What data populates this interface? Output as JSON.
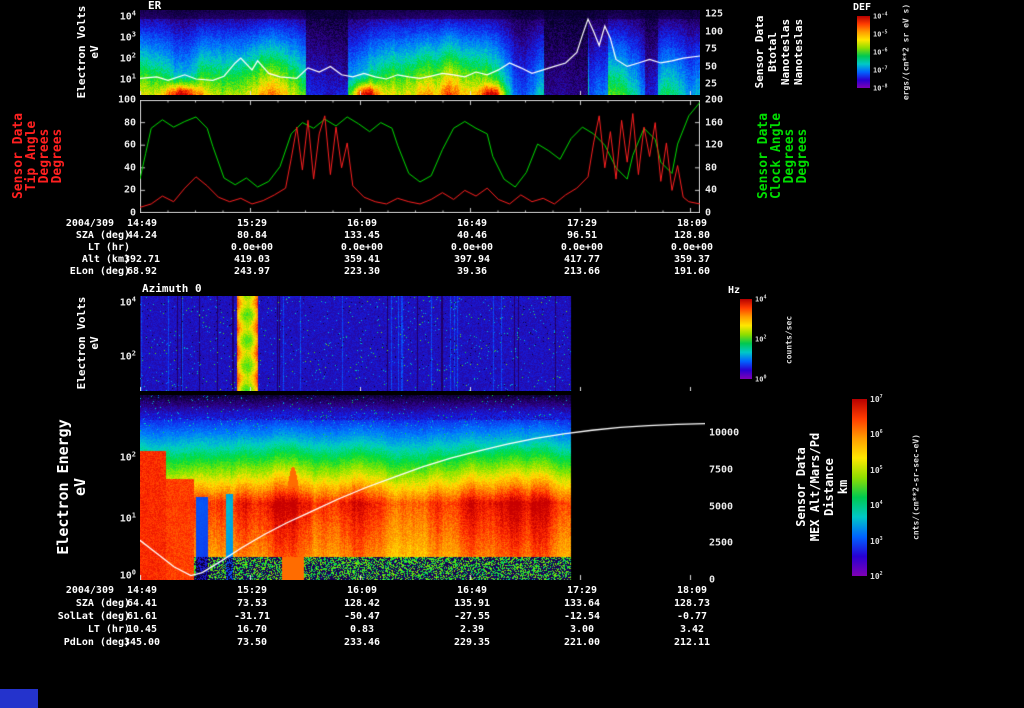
{
  "window": {
    "background": "#000000",
    "corner_box_color": "#2433cc"
  },
  "chart_data": [
    {
      "id": "er-spectrogram",
      "type": "heatmap",
      "title": "ER",
      "x_time_ticks": [
        "14:49",
        "15:29",
        "16:09",
        "16:49",
        "17:29",
        "18:09"
      ],
      "ylabel_lines": [
        "Electron Volts",
        "eV"
      ],
      "yscale": "log",
      "yticks": [
        "10^4",
        "10^3",
        "10^2",
        "10^1"
      ],
      "y2label_lines": [
        "Sensor Data",
        "Btotal",
        "Nanoteslas",
        "Nanoteslas"
      ],
      "y2ticks": [
        "125",
        "100",
        "75",
        "50",
        "25"
      ],
      "y2lim": [
        9,
        131
      ],
      "colorbar": {
        "title": "DEF",
        "ticks": [
          "10^-4",
          "10^-5",
          "10^-6",
          "10^-7",
          "10^-8"
        ],
        "unit": "ergs/(cm**2 sr eV s)"
      },
      "overlay": {
        "name": "Btotal",
        "color": "#ffffff",
        "points": [
          [
            0,
            33
          ],
          [
            0.03,
            35
          ],
          [
            0.05,
            30
          ],
          [
            0.08,
            38
          ],
          [
            0.1,
            32
          ],
          [
            0.13,
            30
          ],
          [
            0.15,
            36
          ],
          [
            0.17,
            55
          ],
          [
            0.18,
            62
          ],
          [
            0.2,
            45
          ],
          [
            0.21,
            58
          ],
          [
            0.23,
            40
          ],
          [
            0.25,
            35
          ],
          [
            0.28,
            33
          ],
          [
            0.3,
            48
          ],
          [
            0.32,
            42
          ],
          [
            0.34,
            50
          ],
          [
            0.36,
            38
          ],
          [
            0.38,
            35
          ],
          [
            0.4,
            40
          ],
          [
            0.42,
            35
          ],
          [
            0.44,
            32
          ],
          [
            0.46,
            38
          ],
          [
            0.48,
            35
          ],
          [
            0.5,
            33
          ],
          [
            0.52,
            36
          ],
          [
            0.54,
            40
          ],
          [
            0.56,
            38
          ],
          [
            0.58,
            35
          ],
          [
            0.6,
            42
          ],
          [
            0.62,
            38
          ],
          [
            0.64,
            45
          ],
          [
            0.66,
            55
          ],
          [
            0.68,
            48
          ],
          [
            0.7,
            40
          ],
          [
            0.72,
            45
          ],
          [
            0.74,
            50
          ],
          [
            0.76,
            55
          ],
          [
            0.78,
            70
          ],
          [
            0.79,
            95
          ],
          [
            0.8,
            118
          ],
          [
            0.81,
            100
          ],
          [
            0.82,
            80
          ],
          [
            0.83,
            108
          ],
          [
            0.84,
            90
          ],
          [
            0.85,
            60
          ],
          [
            0.87,
            50
          ],
          [
            0.89,
            55
          ],
          [
            0.91,
            60
          ],
          [
            0.93,
            55
          ],
          [
            0.95,
            58
          ],
          [
            0.97,
            62
          ],
          [
            1,
            65
          ]
        ]
      },
      "description": "Electron energy-flux spectrogram 10^1-10^4 eV on DEF rainbow scale; bright green-yellow band at low energies with red hot spots near 15:05 and 16:10, dark dropouts near 15:55 and 17:45; white Btotal trace overlaid"
    },
    {
      "id": "angles-line-plot",
      "type": "line",
      "ylabel_lines": [
        "Sensor Data",
        "Tip Angle",
        "Degrees",
        "Degrees"
      ],
      "ylabel_color": "#ff2020",
      "yticks": [
        "100",
        "80",
        "60",
        "40",
        "20",
        "0"
      ],
      "ylim": [
        0,
        100
      ],
      "y2label_lines": [
        "Sensor Data",
        "Clock Angle",
        "Degrees",
        "Degrees"
      ],
      "y2label_color": "#00dd00",
      "y2ticks": [
        "200",
        "160",
        "120",
        "80",
        "40",
        "0"
      ],
      "y2lim": [
        0,
        200
      ],
      "series": [
        {
          "name": "Tip Angle",
          "color": "#ff2020",
          "axis": "left",
          "points": [
            [
              0,
              5
            ],
            [
              0.02,
              8
            ],
            [
              0.04,
              15
            ],
            [
              0.06,
              10
            ],
            [
              0.08,
              22
            ],
            [
              0.1,
              32
            ],
            [
              0.12,
              24
            ],
            [
              0.14,
              14
            ],
            [
              0.16,
              10
            ],
            [
              0.18,
              13
            ],
            [
              0.2,
              8
            ],
            [
              0.22,
              11
            ],
            [
              0.24,
              16
            ],
            [
              0.26,
              22
            ],
            [
              0.27,
              48
            ],
            [
              0.28,
              76
            ],
            [
              0.29,
              38
            ],
            [
              0.3,
              82
            ],
            [
              0.31,
              30
            ],
            [
              0.32,
              70
            ],
            [
              0.33,
              86
            ],
            [
              0.34,
              34
            ],
            [
              0.35,
              76
            ],
            [
              0.36,
              40
            ],
            [
              0.37,
              62
            ],
            [
              0.38,
              24
            ],
            [
              0.4,
              14
            ],
            [
              0.42,
              10
            ],
            [
              0.44,
              8
            ],
            [
              0.46,
              13
            ],
            [
              0.48,
              10
            ],
            [
              0.5,
              8
            ],
            [
              0.52,
              12
            ],
            [
              0.54,
              18
            ],
            [
              0.56,
              12
            ],
            [
              0.58,
              20
            ],
            [
              0.6,
              15
            ],
            [
              0.62,
              22
            ],
            [
              0.64,
              12
            ],
            [
              0.66,
              8
            ],
            [
              0.68,
              16
            ],
            [
              0.7,
              10
            ],
            [
              0.72,
              13
            ],
            [
              0.74,
              8
            ],
            [
              0.76,
              16
            ],
            [
              0.78,
              22
            ],
            [
              0.8,
              32
            ],
            [
              0.81,
              62
            ],
            [
              0.82,
              86
            ],
            [
              0.83,
              40
            ],
            [
              0.84,
              72
            ],
            [
              0.85,
              30
            ],
            [
              0.86,
              82
            ],
            [
              0.87,
              45
            ],
            [
              0.88,
              88
            ],
            [
              0.89,
              34
            ],
            [
              0.9,
              76
            ],
            [
              0.91,
              50
            ],
            [
              0.92,
              80
            ],
            [
              0.93,
              28
            ],
            [
              0.94,
              62
            ],
            [
              0.95,
              20
            ],
            [
              0.96,
              42
            ],
            [
              0.97,
              14
            ],
            [
              0.98,
              10
            ],
            [
              1,
              8
            ]
          ]
        },
        {
          "name": "Clock Angle",
          "color": "#00dd00",
          "axis": "right",
          "points": [
            [
              0,
              60
            ],
            [
              0.01,
              105
            ],
            [
              0.02,
              150
            ],
            [
              0.04,
              165
            ],
            [
              0.06,
              152
            ],
            [
              0.08,
              162
            ],
            [
              0.1,
              170
            ],
            [
              0.12,
              150
            ],
            [
              0.13,
              118
            ],
            [
              0.15,
              62
            ],
            [
              0.17,
              50
            ],
            [
              0.19,
              62
            ],
            [
              0.21,
              46
            ],
            [
              0.23,
              56
            ],
            [
              0.25,
              82
            ],
            [
              0.27,
              140
            ],
            [
              0.29,
              160
            ],
            [
              0.31,
              150
            ],
            [
              0.33,
              166
            ],
            [
              0.35,
              154
            ],
            [
              0.37,
              170
            ],
            [
              0.39,
              158
            ],
            [
              0.41,
              144
            ],
            [
              0.43,
              160
            ],
            [
              0.45,
              150
            ],
            [
              0.46,
              120
            ],
            [
              0.48,
              70
            ],
            [
              0.5,
              55
            ],
            [
              0.52,
              66
            ],
            [
              0.54,
              112
            ],
            [
              0.56,
              150
            ],
            [
              0.58,
              162
            ],
            [
              0.6,
              150
            ],
            [
              0.62,
              140
            ],
            [
              0.63,
              100
            ],
            [
              0.65,
              60
            ],
            [
              0.67,
              46
            ],
            [
              0.69,
              72
            ],
            [
              0.71,
              122
            ],
            [
              0.73,
              110
            ],
            [
              0.75,
              95
            ],
            [
              0.77,
              132
            ],
            [
              0.79,
              152
            ],
            [
              0.81,
              140
            ],
            [
              0.83,
              120
            ],
            [
              0.85,
              80
            ],
            [
              0.87,
              60
            ],
            [
              0.88,
              102
            ],
            [
              0.9,
              150
            ],
            [
              0.92,
              130
            ],
            [
              0.93,
              90
            ],
            [
              0.95,
              70
            ],
            [
              0.96,
              122
            ],
            [
              0.98,
              172
            ],
            [
              1,
              196
            ]
          ]
        }
      ]
    },
    {
      "id": "azimuth-spectrogram",
      "type": "heatmap",
      "title": "Azimuth 0",
      "ylabel_lines": [
        "Electron Volts",
        "eV"
      ],
      "yscale": "log",
      "yticks": [
        "10^4",
        "10^2"
      ],
      "colorbar": {
        "title": "Hz",
        "ticks": [
          "10^4",
          "10^2",
          "10^0"
        ],
        "unit": "counts/sec"
      },
      "description": "Sparse dark-blue counts/sec spectrogram with speckles; bright yellow-orange vertical burst near 15:24; data ends near 17:40"
    },
    {
      "id": "electron-energy-spectrogram",
      "type": "heatmap",
      "x_time_ticks": [
        "14:49",
        "15:29",
        "16:09",
        "16:49",
        "17:29",
        "18:09"
      ],
      "ylabel_lines": [
        "Electron Energy",
        "eV"
      ],
      "yscale": "log",
      "yticks": [
        "10^2",
        "10^1",
        "10^0"
      ],
      "y2label_lines": [
        "Sensor Data",
        "MEX Alt/Mars/Pd",
        "Distance",
        "km"
      ],
      "y2ticks": [
        "10000",
        "7500",
        "5000",
        "2500",
        "0"
      ],
      "y2lim": [
        0,
        12600
      ],
      "colorbar": {
        "ticks": [
          "10^7",
          "10^6",
          "10^5",
          "10^4",
          "10^3",
          "10^2"
        ],
        "unit": "cnts/(cm**2-sr-sec-eV)"
      },
      "overlay": {
        "name": "MEX altitude (km)",
        "color": "#ffffff",
        "points": [
          [
            0,
            2700
          ],
          [
            0.03,
            1800
          ],
          [
            0.06,
            900
          ],
          [
            0.09,
            300
          ],
          [
            0.11,
            500
          ],
          [
            0.14,
            1200
          ],
          [
            0.18,
            2200
          ],
          [
            0.22,
            3100
          ],
          [
            0.26,
            3900
          ],
          [
            0.3,
            4600
          ],
          [
            0.35,
            5500
          ],
          [
            0.4,
            6300
          ],
          [
            0.45,
            7000
          ],
          [
            0.5,
            7700
          ],
          [
            0.55,
            8300
          ],
          [
            0.6,
            8800
          ],
          [
            0.65,
            9250
          ],
          [
            0.7,
            9650
          ],
          [
            0.75,
            9950
          ],
          [
            0.8,
            10200
          ],
          [
            0.85,
            10400
          ],
          [
            0.9,
            10520
          ],
          [
            0.95,
            10600
          ],
          [
            1,
            10650
          ]
        ]
      },
      "description": "Intense red-orange electron flux band below ~30 eV fading through yellow-green to speckled blue at higher energies; dark notches near 15:10 and 15:25; data ends near 17:40; white MEX altitude curve rises from periapsis to ~10500 km"
    }
  ],
  "upper_annotations": {
    "rows": [
      {
        "label": "2004/309",
        "values": [
          "14:49",
          "15:29",
          "16:09",
          "16:49",
          "17:29",
          "18:09"
        ]
      },
      {
        "label": "SZA (deg)",
        "values": [
          "44.24",
          "80.84",
          "133.45",
          "40.46",
          "96.51",
          "128.80"
        ]
      },
      {
        "label": "LT (hr)",
        "values": [
          "",
          "0.0e+00",
          "0.0e+00",
          "0.0e+00",
          "0.0e+00",
          "0.0e+00"
        ]
      },
      {
        "label": "Alt (km)",
        "values": [
          "392.71",
          "419.03",
          "359.41",
          "397.94",
          "417.77",
          "359.37"
        ]
      },
      {
        "label": "ELon (deg)",
        "values": [
          "68.92",
          "243.97",
          "223.30",
          "39.36",
          "213.66",
          "191.60"
        ]
      }
    ]
  },
  "lower_annotations": {
    "rows": [
      {
        "label": "2004/309",
        "values": [
          "14:49",
          "15:29",
          "16:09",
          "16:49",
          "17:29",
          "18:09"
        ]
      },
      {
        "label": "SZA (deg)",
        "values": [
          "64.41",
          "73.53",
          "128.42",
          "135.91",
          "133.64",
          "128.73"
        ]
      },
      {
        "label": "SolLat (deg)",
        "values": [
          "61.61",
          "-31.71",
          "-50.47",
          "-27.55",
          "-12.54",
          "-0.77"
        ]
      },
      {
        "label": "LT (hr)",
        "values": [
          "10.45",
          "16.70",
          "0.83",
          "2.39",
          "3.00",
          "3.42"
        ]
      },
      {
        "label": "PdLon (deg)",
        "values": [
          "345.00",
          "73.50",
          "233.46",
          "229.35",
          "221.00",
          "212.11"
        ]
      }
    ]
  }
}
